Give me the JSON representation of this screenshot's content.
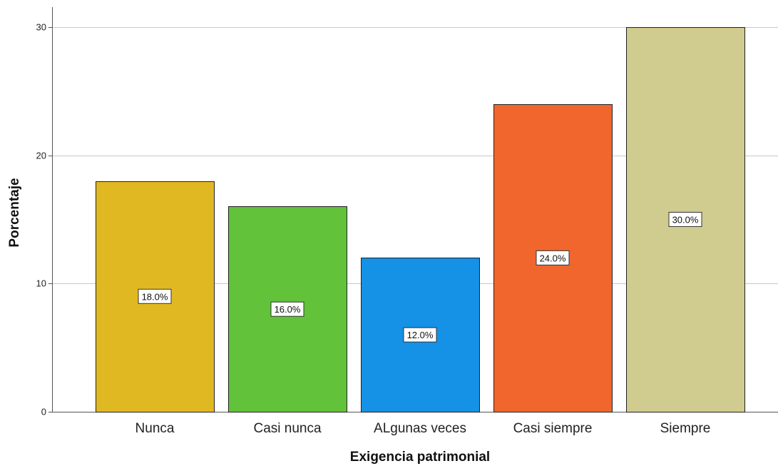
{
  "chart_data": {
    "type": "bar",
    "categories": [
      "Nunca",
      "Casi nunca",
      "ALgunas veces",
      "Casi siempre",
      "Siempre"
    ],
    "values": [
      18,
      16,
      12,
      24,
      30
    ],
    "data_labels": [
      "18.0%",
      "16.0%",
      "12.0%",
      "24.0%",
      "30.0%"
    ],
    "colors": [
      "#e0b922",
      "#62c23a",
      "#1591e6",
      "#f0662c",
      "#d0cb8f"
    ],
    "title": "",
    "xlabel": "Exigencia patrimonial",
    "ylabel": "Porcentaje",
    "ylim": [
      0,
      32
    ],
    "yticks": [
      0,
      10,
      20,
      30
    ],
    "grid": true,
    "legend": "none"
  }
}
